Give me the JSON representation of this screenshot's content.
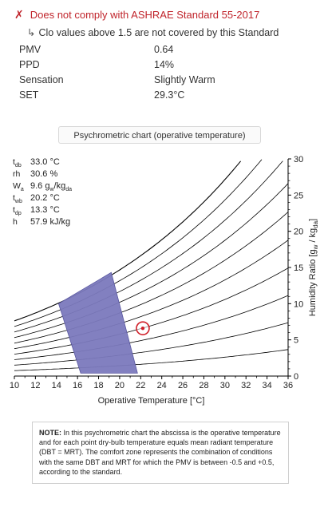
{
  "compliance": {
    "icon": "x-mark",
    "icon_color": "#c0242b",
    "message": "Does not comply with ASHRAE Standard 55-2017",
    "sub_arrow": "↳",
    "sub_message": "Clo values above 1.5 are not covered by this Standard"
  },
  "results": [
    {
      "label": "PMV",
      "value": "0.64"
    },
    {
      "label": "PPD",
      "value": "14%"
    },
    {
      "label": "Sensation",
      "value": "Slightly Warm"
    },
    {
      "label": "SET",
      "value": "29.3°C"
    }
  ],
  "chart_selector": {
    "value": "Psychrometric chart (operative temperature)"
  },
  "readouts": [
    {
      "sym": "t",
      "sub": "db",
      "value": "33.0 °C"
    },
    {
      "sym": "rh",
      "sub": "",
      "value": "30.6 %"
    },
    {
      "sym": "W",
      "sub": "a",
      "value": "9.6  g",
      "unit_sub1": "w",
      "unit_mid": "/kg",
      "unit_sub2": "da"
    },
    {
      "sym": "t",
      "sub": "wb",
      "value": "20.2 °C"
    },
    {
      "sym": "t",
      "sub": "dp",
      "value": "13.3 °C"
    },
    {
      "sym": "h",
      "sub": "",
      "value": "57.9 kJ/kg"
    }
  ],
  "chart_data": {
    "type": "scatter",
    "xlabel": "Operative Temperature [°C]",
    "ylabel": "Humidity Ratio [g_w / kg_da]",
    "ylabel_parts": {
      "main": "Humidity Ratio [g",
      "sub1": "w",
      "mid": " / kg",
      "sub2": "da",
      "end": "]"
    },
    "xlim": [
      10,
      36
    ],
    "ylim": [
      0,
      30
    ],
    "x_ticks": [
      "10",
      "12",
      "14",
      "16",
      "18",
      "20",
      "22",
      "24",
      "26",
      "28",
      "30",
      "32",
      "34",
      "36"
    ],
    "y_ticks": [
      "0",
      "5",
      "10",
      "15",
      "20",
      "25",
      "30"
    ],
    "rh_curves_percent": [
      10,
      20,
      30,
      40,
      50,
      60,
      70,
      80,
      90,
      100
    ],
    "comfort_zone": {
      "color": "#7b79bd",
      "polygon": [
        [
          16.3,
          0.4
        ],
        [
          21.7,
          0.4
        ],
        [
          19.2,
          14.3
        ],
        [
          14.2,
          10.0
        ]
      ]
    },
    "current_point": {
      "x": 22.2,
      "y": 6.6,
      "color": "#d0202a"
    },
    "grid": false
  },
  "note": {
    "title": "NOTE:",
    "text": "In this psychrometric chart the abscissa is the operative temperature and for each point dry-bulb temperature equals mean radiant temperature (DBT = MRT). The comfort zone represents the combination of conditions with the same DBT and MRT for which the PMV is between -0.5 and +0.5, according to the standard."
  }
}
